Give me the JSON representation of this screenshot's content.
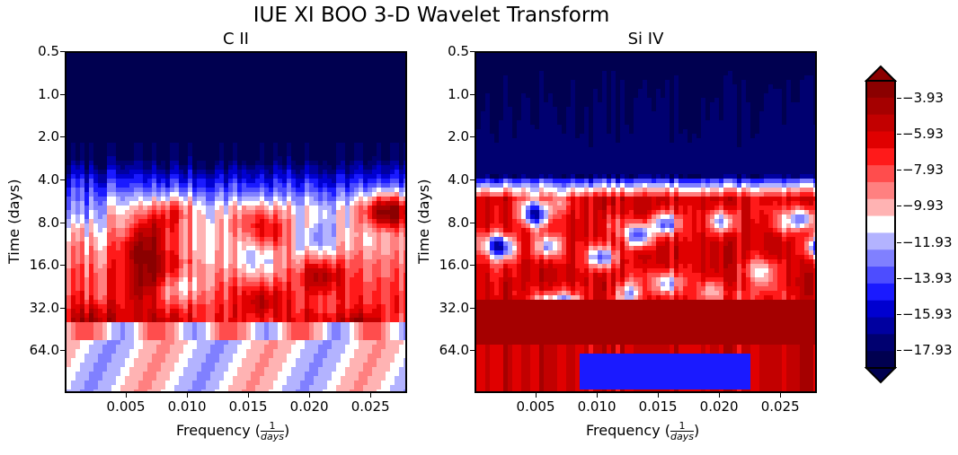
{
  "figure": {
    "title": "IUE XI BOO 3-D Wavelet Transform"
  },
  "chart_data": [
    {
      "type": "heatmap",
      "title": "C II",
      "xlabel_prefix": "Frequency (",
      "xlabel_num": "1",
      "xlabel_den": "days",
      "xlabel_suffix": ")",
      "ylabel": "Time (days)",
      "x_ticks": [
        "0.005",
        "0.010",
        "0.015",
        "0.020",
        "0.025"
      ],
      "x_tick_values": [
        0.005,
        0.01,
        0.015,
        0.02,
        0.025
      ],
      "xlim": [
        0.0,
        0.028
      ],
      "y_ticks": [
        "0.5",
        "1.0",
        "2.0",
        "4.0",
        "8.0",
        "16.0",
        "32.0",
        "64.0"
      ],
      "y_tick_values": [
        0.5,
        1,
        2,
        4,
        8,
        16,
        32,
        64
      ],
      "ylim": [
        0.5,
        128
      ],
      "y_scale": "log2",
      "y_inverted": true
    },
    {
      "type": "heatmap",
      "title": "Si IV",
      "xlabel_prefix": "Frequency (",
      "xlabel_num": "1",
      "xlabel_den": "days",
      "xlabel_suffix": ")",
      "ylabel": "Time (days)",
      "x_ticks": [
        "0.005",
        "0.010",
        "0.015",
        "0.020",
        "0.025"
      ],
      "x_tick_values": [
        0.005,
        0.01,
        0.015,
        0.02,
        0.025
      ],
      "xlim": [
        0.0,
        0.028
      ],
      "y_ticks": [
        "0.5",
        "1.0",
        "2.0",
        "4.0",
        "8.0",
        "16.0",
        "32.0",
        "64.0"
      ],
      "y_tick_values": [
        0.5,
        1,
        2,
        4,
        8,
        16,
        32,
        64
      ],
      "ylim": [
        0.5,
        128
      ],
      "y_scale": "log2",
      "y_inverted": true
    }
  ],
  "colorbar": {
    "labels": [
      "−3.93",
      "−5.93",
      "−7.93",
      "−9.93",
      "−11.93",
      "−13.93",
      "−15.93",
      "−17.93"
    ],
    "values": [
      -3.93,
      -5.93,
      -7.93,
      -9.93,
      -11.93,
      -13.93,
      -15.93,
      -17.93
    ],
    "colormap": "seismic",
    "extend": "both",
    "colors": [
      "#8b0000",
      "#a50000",
      "#c20000",
      "#e00000",
      "#ff1a1a",
      "#ff4d4d",
      "#ff8080",
      "#ffb3b3",
      "#ffffff",
      "#b3b3ff",
      "#8080ff",
      "#4d4dff",
      "#1a1aff",
      "#0000d0",
      "#0000a0",
      "#000070",
      "#000050"
    ]
  }
}
